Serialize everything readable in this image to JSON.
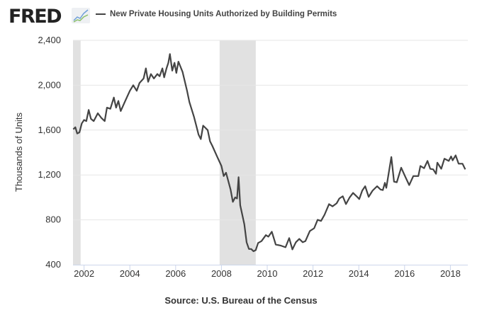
{
  "header": {
    "logo": "FRED",
    "legend_label": "New Private Housing Units Authorized by Building Permits"
  },
  "footer": {
    "source": "Source: U.S. Bureau of the Census"
  },
  "colors": {
    "line": "#444444",
    "recession": "#e1e1e1",
    "grid": "#e6e6e6",
    "axis": "#ccd6eb"
  },
  "chart_data": {
    "type": "line",
    "title": "New Private Housing Units Authorized by Building Permits",
    "xlabel": "",
    "ylabel": "Thousands of Units",
    "xlim": [
      2001.5,
      2018.65
    ],
    "ylim": [
      400,
      2400
    ],
    "x_ticks": [
      "2002",
      "2004",
      "2006",
      "2008",
      "2010",
      "2012",
      "2014",
      "2016",
      "2018"
    ],
    "y_ticks": [
      "400",
      "800",
      "1,200",
      "1,600",
      "2,000",
      "2,400"
    ],
    "grid": true,
    "recessions": [
      [
        2001.5,
        2001.85
      ],
      [
        2007.92,
        2009.5
      ]
    ],
    "series": [
      {
        "name": "New Private Housing Units Authorized by Building Permits",
        "x": [
          2001.53,
          2001.62,
          2001.7,
          2001.8,
          2001.9,
          2002.0,
          2002.1,
          2002.2,
          2002.3,
          2002.42,
          2002.6,
          2002.75,
          2002.9,
          2003.0,
          2003.15,
          2003.3,
          2003.4,
          2003.5,
          2003.6,
          2003.8,
          2004.0,
          2004.15,
          2004.3,
          2004.42,
          2004.6,
          2004.7,
          2004.8,
          2004.92,
          2005.05,
          2005.2,
          2005.3,
          2005.42,
          2005.5,
          2005.6,
          2005.68,
          2005.75,
          2005.85,
          2005.95,
          2006.03,
          2006.12,
          2006.3,
          2006.5,
          2006.6,
          2006.8,
          2006.9,
          2007.0,
          2007.1,
          2007.2,
          2007.4,
          2007.5,
          2007.6,
          2007.8,
          2008.0,
          2008.1,
          2008.2,
          2008.4,
          2008.5,
          2008.6,
          2008.68,
          2008.75,
          2008.82,
          2009.0,
          2009.1,
          2009.2,
          2009.3,
          2009.4,
          2009.5,
          2009.6,
          2009.75,
          2009.94,
          2010.05,
          2010.2,
          2010.37,
          2010.6,
          2010.8,
          2010.96,
          2011.1,
          2011.25,
          2011.4,
          2011.55,
          2011.67,
          2011.86,
          2012.05,
          2012.2,
          2012.35,
          2012.5,
          2012.7,
          2012.85,
          2013.03,
          2013.15,
          2013.3,
          2013.44,
          2013.6,
          2013.75,
          2013.9,
          2014.02,
          2014.15,
          2014.28,
          2014.43,
          2014.6,
          2014.8,
          2014.95,
          2015.05,
          2015.14,
          2015.2,
          2015.42,
          2015.54,
          2015.66,
          2015.85,
          2016.04,
          2016.2,
          2016.38,
          2016.6,
          2016.69,
          2016.85,
          2017.0,
          2017.12,
          2017.25,
          2017.37,
          2017.43,
          2017.6,
          2017.74,
          2017.93,
          2018.03,
          2018.1,
          2018.23,
          2018.36,
          2018.53,
          2018.65
        ],
        "values": [
          1607,
          1625,
          1570,
          1580,
          1660,
          1690,
          1680,
          1780,
          1700,
          1680,
          1750,
          1710,
          1680,
          1800,
          1790,
          1890,
          1800,
          1860,
          1770,
          1860,
          1950,
          2000,
          1950,
          2020,
          2060,
          2150,
          2030,
          2100,
          2060,
          2100,
          2080,
          2150,
          2070,
          2150,
          2200,
          2278,
          2130,
          2200,
          2110,
          2210,
          2120,
          1950,
          1850,
          1720,
          1640,
          1560,
          1520,
          1640,
          1600,
          1500,
          1460,
          1370,
          1280,
          1190,
          1220,
          1070,
          960,
          1000,
          990,
          1180,
          930,
          760,
          600,
          540,
          540,
          520,
          530,
          594,
          610,
          664,
          650,
          694,
          580,
          570,
          555,
          637,
          536,
          600,
          630,
          600,
          611,
          700,
          725,
          800,
          790,
          845,
          940,
          920,
          947,
          990,
          1010,
          940,
          1000,
          1040,
          1010,
          985,
          1060,
          1100,
          1005,
          1060,
          1100,
          1070,
          1065,
          1130,
          1085,
          1360,
          1140,
          1135,
          1265,
          1180,
          1110,
          1190,
          1190,
          1280,
          1260,
          1325,
          1255,
          1250,
          1210,
          1310,
          1255,
          1345,
          1325,
          1365,
          1330,
          1375,
          1300,
          1300,
          1250
        ]
      }
    ]
  }
}
